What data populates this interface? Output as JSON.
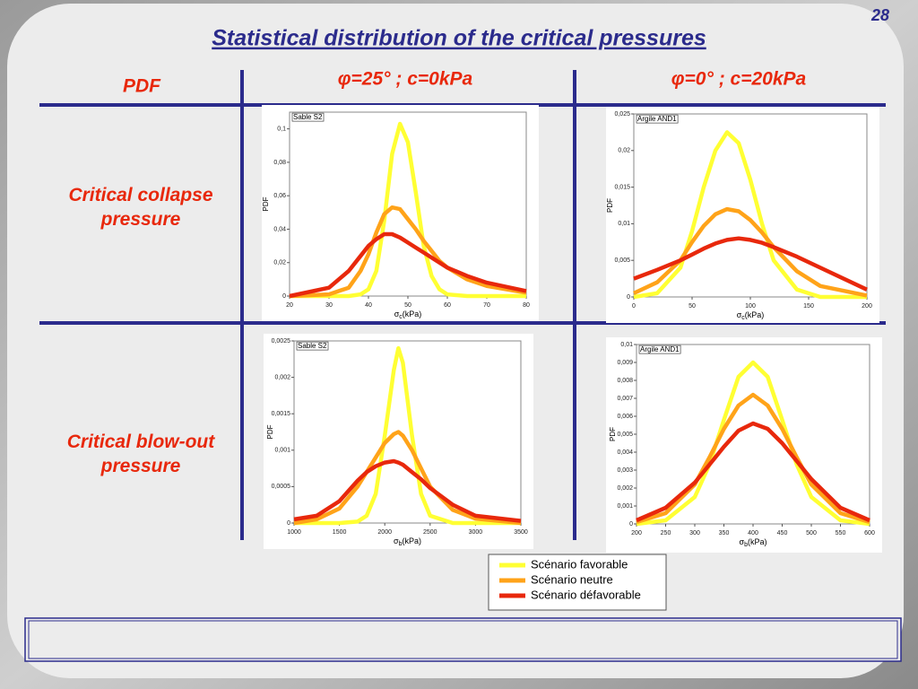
{
  "page_number": "28",
  "title": "Statistical distribution of the critical pressures",
  "table": {
    "header": [
      "PDF",
      "φ=25° ; c=0kPa",
      "φ=0° ; c=20kPa"
    ],
    "rows": [
      "Critical collapse pressure",
      "Critical blow-out pressure"
    ]
  },
  "legend": [
    {
      "name": "Scénario favorable",
      "color": "#ffff33"
    },
    {
      "name": "Scénario neutre",
      "color": "#ffa319"
    },
    {
      "name": "Scénario défavorable",
      "color": "#e8280c"
    }
  ],
  "chart_data": [
    {
      "type": "line",
      "label": "Sable S2",
      "ylabel": "PDF",
      "xlabel": {
        "symbol": "σ",
        "sub": "c",
        "unit": "(kPa)"
      },
      "x": [
        20,
        30,
        35,
        38,
        40,
        42,
        44,
        46,
        48,
        50,
        52,
        54,
        56,
        58,
        60,
        65,
        70,
        80
      ],
      "xlim": [
        20,
        80
      ],
      "xticks": [
        20,
        30,
        40,
        50,
        60,
        70,
        80
      ],
      "ylim": [
        0,
        0.11
      ],
      "yticks": [
        0,
        {
          "value": 0.02,
          "label": "0,02"
        },
        {
          "value": 0.04,
          "label": "0,04"
        },
        {
          "value": 0.06,
          "label": "0,06"
        },
        {
          "value": 0.08,
          "label": "0,08"
        },
        {
          "value": 0.1,
          "label": "0,1"
        }
      ],
      "series": [
        {
          "values": [
            0,
            0,
            0,
            0.001,
            0.004,
            0.015,
            0.045,
            0.085,
            0.103,
            0.092,
            0.062,
            0.03,
            0.012,
            0.004,
            0.001,
            0,
            0,
            0
          ]
        },
        {
          "values": [
            0,
            0.001,
            0.005,
            0.015,
            0.025,
            0.038,
            0.049,
            0.053,
            0.052,
            0.046,
            0.04,
            0.033,
            0.027,
            0.021,
            0.017,
            0.01,
            0.006,
            0.002
          ]
        },
        {
          "values": [
            0,
            0.005,
            0.015,
            0.024,
            0.03,
            0.034,
            0.037,
            0.037,
            0.035,
            0.032,
            0.029,
            0.026,
            0.023,
            0.02,
            0.017,
            0.012,
            0.008,
            0.003
          ]
        }
      ]
    },
    {
      "type": "line",
      "label": "Argile AND1",
      "ylabel": "PDF",
      "xlabel": {
        "symbol": "σ",
        "sub": "c",
        "unit": "(kPa)"
      },
      "x": [
        0,
        20,
        40,
        50,
        60,
        70,
        80,
        90,
        100,
        110,
        120,
        140,
        160,
        200
      ],
      "xlim": [
        0,
        200
      ],
      "xticks": [
        0,
        50,
        100,
        150,
        200
      ],
      "ylim": [
        0,
        0.025
      ],
      "yticks": [
        0,
        {
          "value": 0.005,
          "label": "0,005"
        },
        {
          "value": 0.01,
          "label": "0,01"
        },
        {
          "value": 0.015,
          "label": "0,015"
        },
        {
          "value": 0.02,
          "label": "0,02"
        },
        {
          "value": 0.025,
          "label": "0,025"
        }
      ],
      "series": [
        {
          "values": [
            0,
            0.0005,
            0.004,
            0.009,
            0.015,
            0.02,
            0.0225,
            0.021,
            0.016,
            0.01,
            0.005,
            0.001,
            0,
            0
          ]
        },
        {
          "values": [
            0.0005,
            0.002,
            0.005,
            0.0075,
            0.0097,
            0.0113,
            0.012,
            0.0117,
            0.0105,
            0.0088,
            0.0068,
            0.0035,
            0.0015,
            0.0002
          ]
        },
        {
          "values": [
            0.0025,
            0.0037,
            0.005,
            0.0058,
            0.0066,
            0.0073,
            0.0078,
            0.008,
            0.0078,
            0.0074,
            0.0068,
            0.0055,
            0.004,
            0.001
          ]
        }
      ]
    },
    {
      "type": "line",
      "label": "Sable S2",
      "ylabel": "PDF",
      "xlabel": {
        "symbol": "σ",
        "sub": "b",
        "unit": "(kPa)"
      },
      "x": [
        1000,
        1250,
        1500,
        1700,
        1800,
        1900,
        2000,
        2100,
        2150,
        2200,
        2300,
        2400,
        2500,
        2750,
        3000,
        3500
      ],
      "xlim": [
        1000,
        3500
      ],
      "xticks": [
        1000,
        1500,
        2000,
        2500,
        3000,
        3500
      ],
      "ylim": [
        0,
        0.0025
      ],
      "yticks": [
        0,
        {
          "value": 0.0005,
          "label": "0,0005"
        },
        {
          "value": 0.001,
          "label": "0,001"
        },
        {
          "value": 0.0015,
          "label": "0,0015"
        },
        {
          "value": 0.002,
          "label": "0,002"
        },
        {
          "value": 0.0025,
          "label": "0,0025"
        }
      ],
      "series": [
        {
          "values": [
            0,
            0,
            0,
            2e-05,
            0.0001,
            0.0004,
            0.0012,
            0.0021,
            0.0024,
            0.0022,
            0.0012,
            0.0004,
            0.0001,
            0,
            0,
            0
          ]
        },
        {
          "values": [
            0,
            5e-05,
            0.0002,
            0.0005,
            0.0007,
            0.0009,
            0.0011,
            0.00122,
            0.00125,
            0.0012,
            0.001,
            0.00075,
            0.0005,
            0.00018,
            6e-05,
            0
          ]
        },
        {
          "values": [
            5e-05,
            0.0001,
            0.0003,
            0.00058,
            0.0007,
            0.00078,
            0.00083,
            0.00085,
            0.00083,
            0.0008,
            0.0007,
            0.0006,
            0.00048,
            0.00025,
            0.0001,
            3e-05
          ]
        }
      ]
    },
    {
      "type": "line",
      "label": "Argile AND1",
      "ylabel": "PDF",
      "xlabel": {
        "symbol": "σ",
        "sub": "b",
        "unit": "(kPa)"
      },
      "x": [
        200,
        250,
        300,
        325,
        350,
        375,
        400,
        425,
        450,
        475,
        500,
        550,
        600
      ],
      "xlim": [
        200,
        600
      ],
      "xticks": [
        200,
        250,
        300,
        350,
        400,
        450,
        500,
        550,
        600
      ],
      "ylim": [
        0,
        0.01
      ],
      "yticks": [
        0,
        {
          "value": 0.001,
          "label": "0,001"
        },
        {
          "value": 0.002,
          "label": "0,002"
        },
        {
          "value": 0.003,
          "label": "0,003"
        },
        {
          "value": 0.004,
          "label": "0,004"
        },
        {
          "value": 0.005,
          "label": "0,005"
        },
        {
          "value": 0.006,
          "label": "0,006"
        },
        {
          "value": 0.007,
          "label": "0,007"
        },
        {
          "value": 0.008,
          "label": "0,008"
        },
        {
          "value": 0.009,
          "label": "0,009"
        },
        {
          "value": 0.01,
          "label": "0,01"
        }
      ],
      "series": [
        {
          "values": [
            0,
            0.0002,
            0.0015,
            0.0033,
            0.0058,
            0.0082,
            0.009,
            0.0082,
            0.0058,
            0.0033,
            0.0015,
            0.0002,
            0
          ]
        },
        {
          "values": [
            0.0001,
            0.0006,
            0.0022,
            0.0037,
            0.0053,
            0.0066,
            0.0072,
            0.0066,
            0.0053,
            0.0037,
            0.0022,
            0.0006,
            0.0001
          ]
        },
        {
          "values": [
            0.0002,
            0.0009,
            0.0023,
            0.0033,
            0.0043,
            0.0052,
            0.0056,
            0.0053,
            0.0045,
            0.0035,
            0.0025,
            0.0009,
            0.0002
          ]
        }
      ]
    }
  ]
}
